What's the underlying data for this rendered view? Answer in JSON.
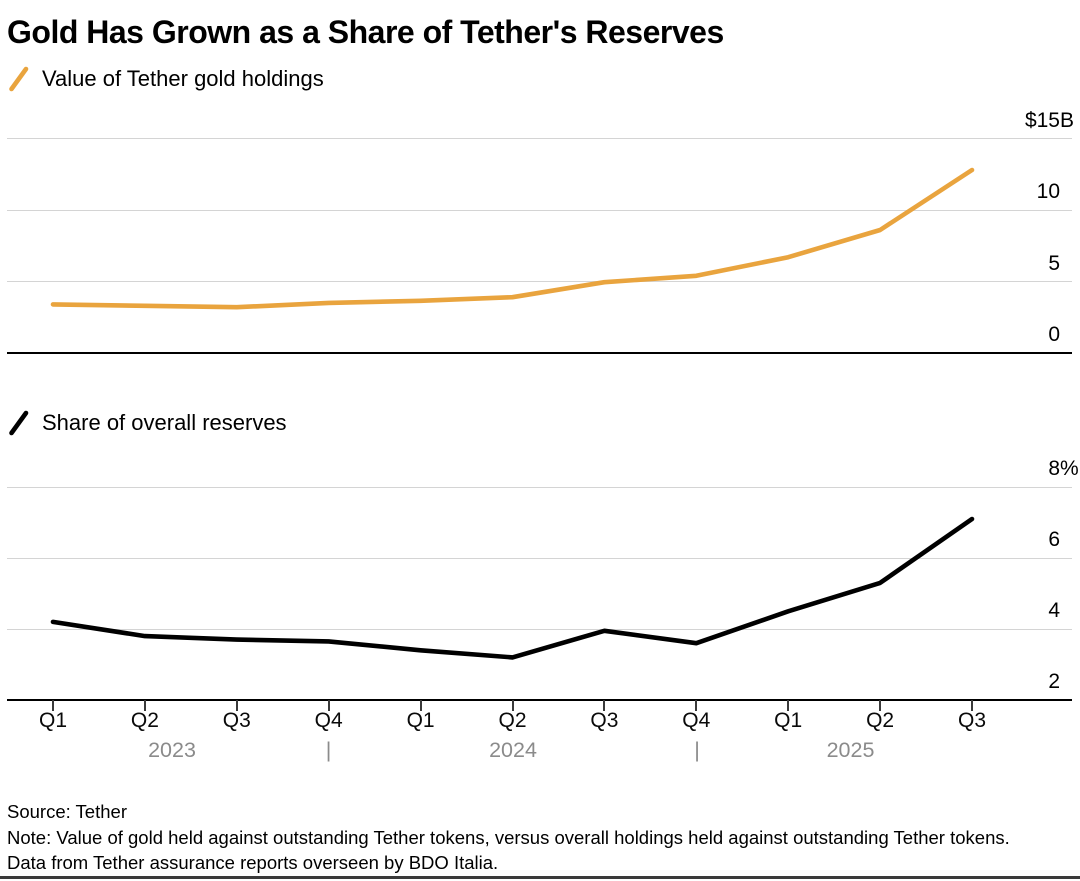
{
  "title": "Gold Has Grown as a Share of Tether's Reserves",
  "colors": {
    "gold_line": "#E9A43E",
    "share_line": "#000000",
    "gridline": "#D4D4D4",
    "axis_baseline": "#000000",
    "year_text_gray": "#8B8B8B"
  },
  "legends": [
    {
      "label": "Value of Tether gold holdings"
    },
    {
      "label": "Share of overall reserves"
    }
  ],
  "x_axis": {
    "quarters": [
      "Q1",
      "Q2",
      "Q3",
      "Q4",
      "Q1",
      "Q2",
      "Q3",
      "Q4",
      "Q1",
      "Q2",
      "Q3"
    ],
    "year_row": [
      "2023",
      "|",
      "2024",
      "|",
      "2025"
    ]
  },
  "source": "Source: Tether",
  "note": "Note: Value of gold held against outstanding Tether tokens, versus overall holdings held against outstanding Tether tokens. Data from Tether assurance reports overseen by BDO Italia.",
  "chart_data": [
    {
      "type": "line",
      "title": "Value of Tether gold holdings",
      "unit": "billions USD",
      "categories": [
        "Q1 2023",
        "Q2 2023",
        "Q3 2023",
        "Q4 2023",
        "Q1 2024",
        "Q2 2024",
        "Q3 2024",
        "Q4 2024",
        "Q1 2025",
        "Q2 2025",
        "Q3 2025"
      ],
      "series": [
        {
          "name": "Value of Tether gold holdings",
          "color": "#E9A43E",
          "values": [
            3.4,
            3.3,
            3.2,
            3.5,
            3.65,
            3.9,
            4.95,
            5.4,
            6.7,
            8.6,
            12.8
          ]
        }
      ],
      "ylim": [
        0,
        15
      ],
      "yticks": [
        {
          "value": 15,
          "label": "$15B"
        },
        {
          "value": 10,
          "label": "10"
        },
        {
          "value": 5,
          "label": "5"
        },
        {
          "value": 0,
          "label": "0"
        }
      ],
      "grid": true,
      "legend_position": "top-left"
    },
    {
      "type": "line",
      "title": "Share of overall reserves",
      "unit": "percent",
      "categories": [
        "Q1 2023",
        "Q2 2023",
        "Q3 2023",
        "Q4 2023",
        "Q1 2024",
        "Q2 2024",
        "Q3 2024",
        "Q4 2024",
        "Q1 2025",
        "Q2 2025",
        "Q3 2025"
      ],
      "series": [
        {
          "name": "Share of overall reserves",
          "color": "#000000",
          "values": [
            4.2,
            3.8,
            3.7,
            3.65,
            3.4,
            3.2,
            3.95,
            3.6,
            4.5,
            5.3,
            7.1
          ]
        }
      ],
      "ylim": [
        2,
        8
      ],
      "yticks": [
        {
          "value": 8,
          "label": "8%"
        },
        {
          "value": 6,
          "label": "6"
        },
        {
          "value": 4,
          "label": "4"
        },
        {
          "value": 2,
          "label": "2"
        }
      ],
      "grid": true,
      "legend_position": "top-left"
    }
  ]
}
